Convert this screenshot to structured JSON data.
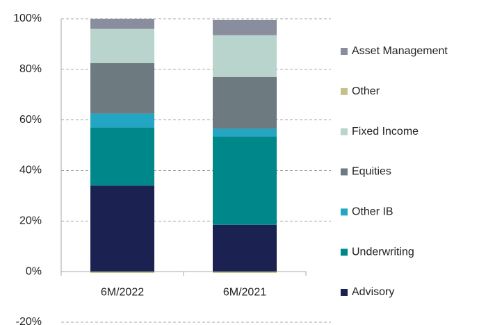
{
  "chart_data": {
    "type": "stacked_bar",
    "categories": [
      "6M/2022",
      "6M/2021"
    ],
    "series": [
      {
        "name": "Advisory",
        "color": "#1b2150",
        "values": [
          34,
          18.5
        ]
      },
      {
        "name": "Underwriting",
        "color": "#00878a",
        "values": [
          23,
          35
        ]
      },
      {
        "name": "Other IB",
        "color": "#22a6c4",
        "values": [
          5.5,
          3
        ]
      },
      {
        "name": "Equities",
        "color": "#6d7b80",
        "values": [
          20,
          20.5
        ]
      },
      {
        "name": "Fixed Income",
        "color": "#b8d4cc",
        "values": [
          13.5,
          16.5
        ]
      },
      {
        "name": "Other",
        "color": "#c2c18a",
        "values": [
          -0.5,
          -0.5
        ]
      },
      {
        "name": "Asset Management",
        "color": "#8a8d9e",
        "values": [
          4,
          6
        ]
      }
    ],
    "ylim": [
      -20,
      100
    ],
    "yticks": [
      {
        "value": -20,
        "label": "-20%"
      },
      {
        "value": 0,
        "label": "0%"
      },
      {
        "value": 20,
        "label": "20%"
      },
      {
        "value": 40,
        "label": "40%"
      },
      {
        "value": 60,
        "label": "60%"
      },
      {
        "value": 80,
        "label": "80%"
      },
      {
        "value": 100,
        "label": "100%"
      }
    ],
    "grid": true,
    "legend": "right"
  }
}
